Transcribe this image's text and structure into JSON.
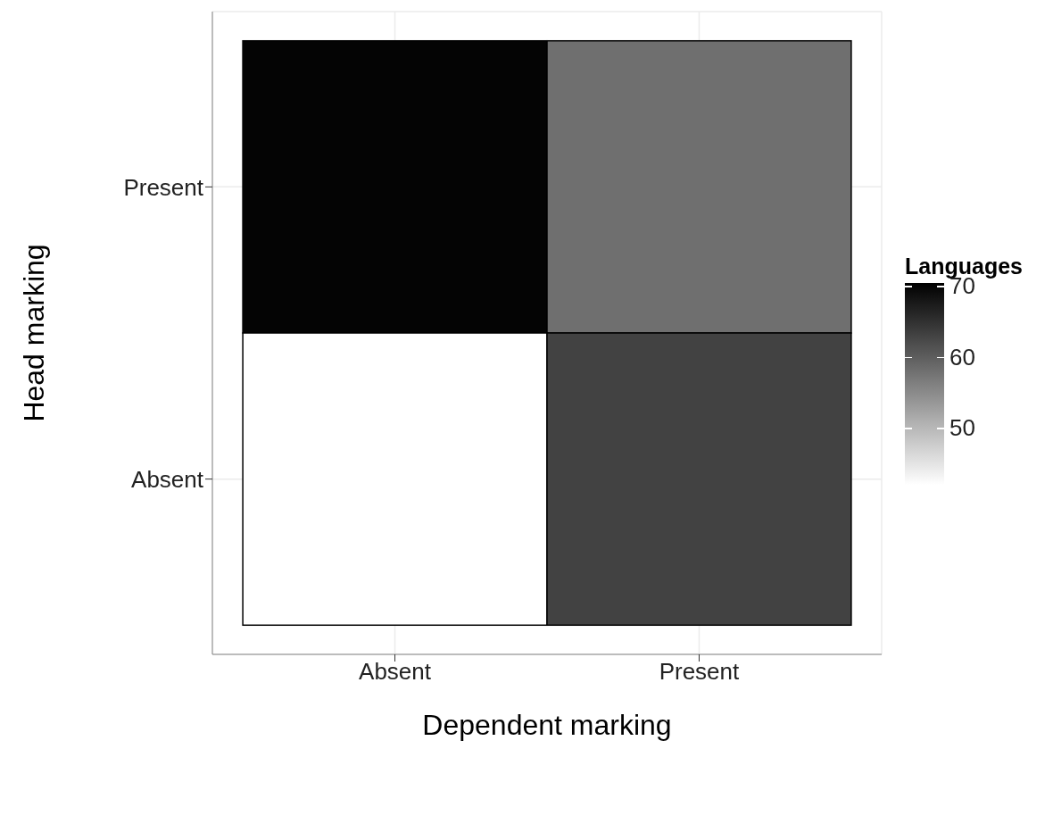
{
  "chart_data": {
    "type": "heatmap",
    "xlabel": "Dependent marking",
    "ylabel": "Head marking",
    "clabel": "Languages",
    "categories": [
      "Absent",
      "Present"
    ],
    "y_categories": [
      "Present",
      "Absent"
    ],
    "cells": [
      [
        70,
        58
      ],
      [
        42,
        63
      ]
    ],
    "clim": [
      42,
      70.4
    ],
    "cticks": [
      50,
      60,
      70
    ],
    "grid": true
  }
}
